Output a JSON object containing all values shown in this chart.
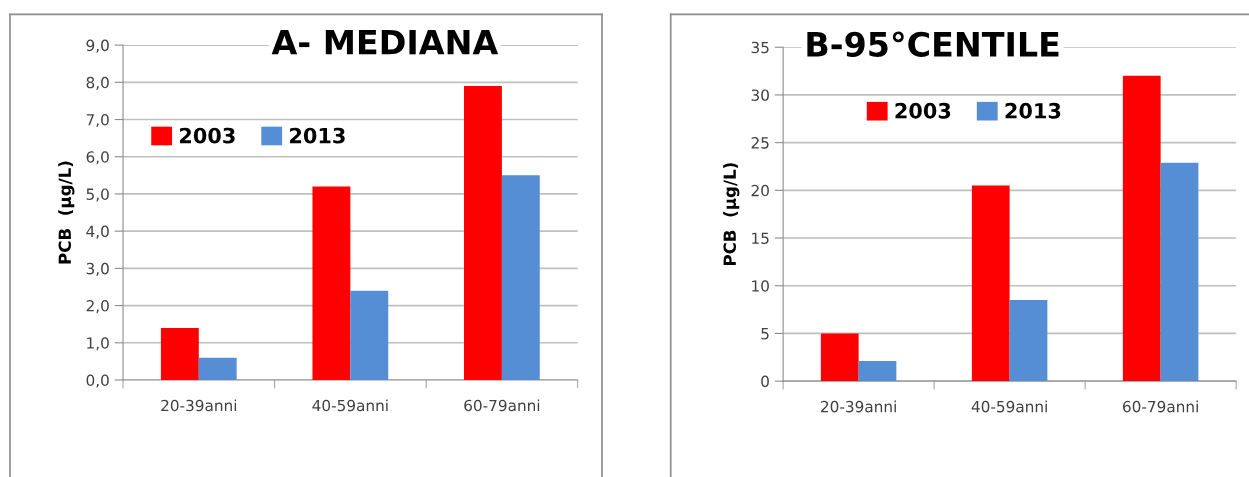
{
  "chart_data": [
    {
      "type": "bar",
      "title": "A- MEDIANA",
      "ylabel": "PCB  (µg/L)",
      "categories": [
        "20-39anni",
        "40-59anni",
        "60-79anni"
      ],
      "series": [
        {
          "name": "2003",
          "color": "#ff0000",
          "values": [
            1.4,
            5.2,
            7.9
          ]
        },
        {
          "name": "2013",
          "color": "#558ed5",
          "values": [
            0.6,
            2.4,
            5.5
          ]
        }
      ],
      "ylim": [
        0,
        9
      ],
      "yticks": [
        {
          "value": 0,
          "label": "0,0"
        },
        {
          "value": 1,
          "label": "1,0"
        },
        {
          "value": 2,
          "label": "2,0"
        },
        {
          "value": 3,
          "label": "3,0"
        },
        {
          "value": 4,
          "label": "4,0"
        },
        {
          "value": 5,
          "label": "5,0"
        },
        {
          "value": 6,
          "label": "6,0"
        },
        {
          "value": 7,
          "label": "7,0"
        },
        {
          "value": 8,
          "label": "8,0"
        },
        {
          "value": 9,
          "label": "9,0"
        }
      ],
      "grid": "y",
      "legend": "top left"
    },
    {
      "type": "bar",
      "title": "B-95°CENTILE",
      "ylabel": "PCB  (µg/L)",
      "categories": [
        "20-39anni",
        "40-59anni",
        "60-79anni"
      ],
      "series": [
        {
          "name": "2003",
          "color": "#ff0000",
          "values": [
            5.0,
            20.5,
            32.0
          ]
        },
        {
          "name": "2013",
          "color": "#558ed5",
          "values": [
            2.1,
            8.5,
            22.9
          ]
        }
      ],
      "ylim": [
        0,
        35
      ],
      "yticks": [
        0,
        5,
        10,
        15,
        20,
        25,
        30,
        35
      ],
      "grid": "y",
      "legend": "top"
    }
  ]
}
